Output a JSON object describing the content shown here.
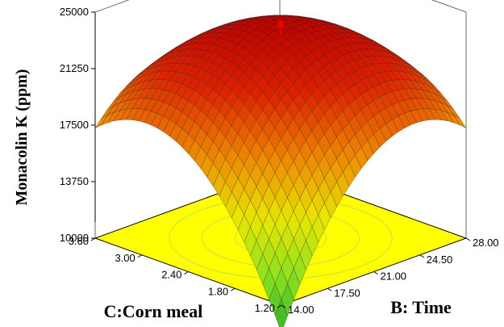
{
  "chart_data": {
    "type": "surface3d",
    "zlabel": "Monacolin K (ppm)",
    "xlabel": "C:Corn meal",
    "ylabel": "B: Time",
    "x_ticks": [
      "1.20",
      "1.80",
      "2.40",
      "3.00",
      "3.60"
    ],
    "y_ticks": [
      "14.00",
      "17.50",
      "21.00",
      "24.50",
      "28.00"
    ],
    "z_ticks": [
      "10000",
      "13750",
      "17500",
      "21250",
      "25000"
    ],
    "x_range": [
      1.2,
      3.6
    ],
    "y_range": [
      14,
      28
    ],
    "z_range": [
      10000,
      25000
    ],
    "surface": {
      "description_values": {
        "max_point": {
          "x": 2.4,
          "y": 21.0,
          "z": 24000
        },
        "corner_values": [
          {
            "x": 1.2,
            "y": 14.0,
            "z": 8200
          },
          {
            "x": 3.6,
            "y": 14.0,
            "z": 17300
          },
          {
            "x": 1.2,
            "y": 28.0,
            "z": 17300
          },
          {
            "x": 3.6,
            "y": 28.0,
            "z": 12500
          }
        ]
      },
      "colormap": [
        "#22aa22",
        "#88e022",
        "#e8e800",
        "#ee8800",
        "#dd2200",
        "#bb0000"
      ]
    },
    "floor_color": "#ffff00",
    "design_point_color": "#ee0000"
  }
}
